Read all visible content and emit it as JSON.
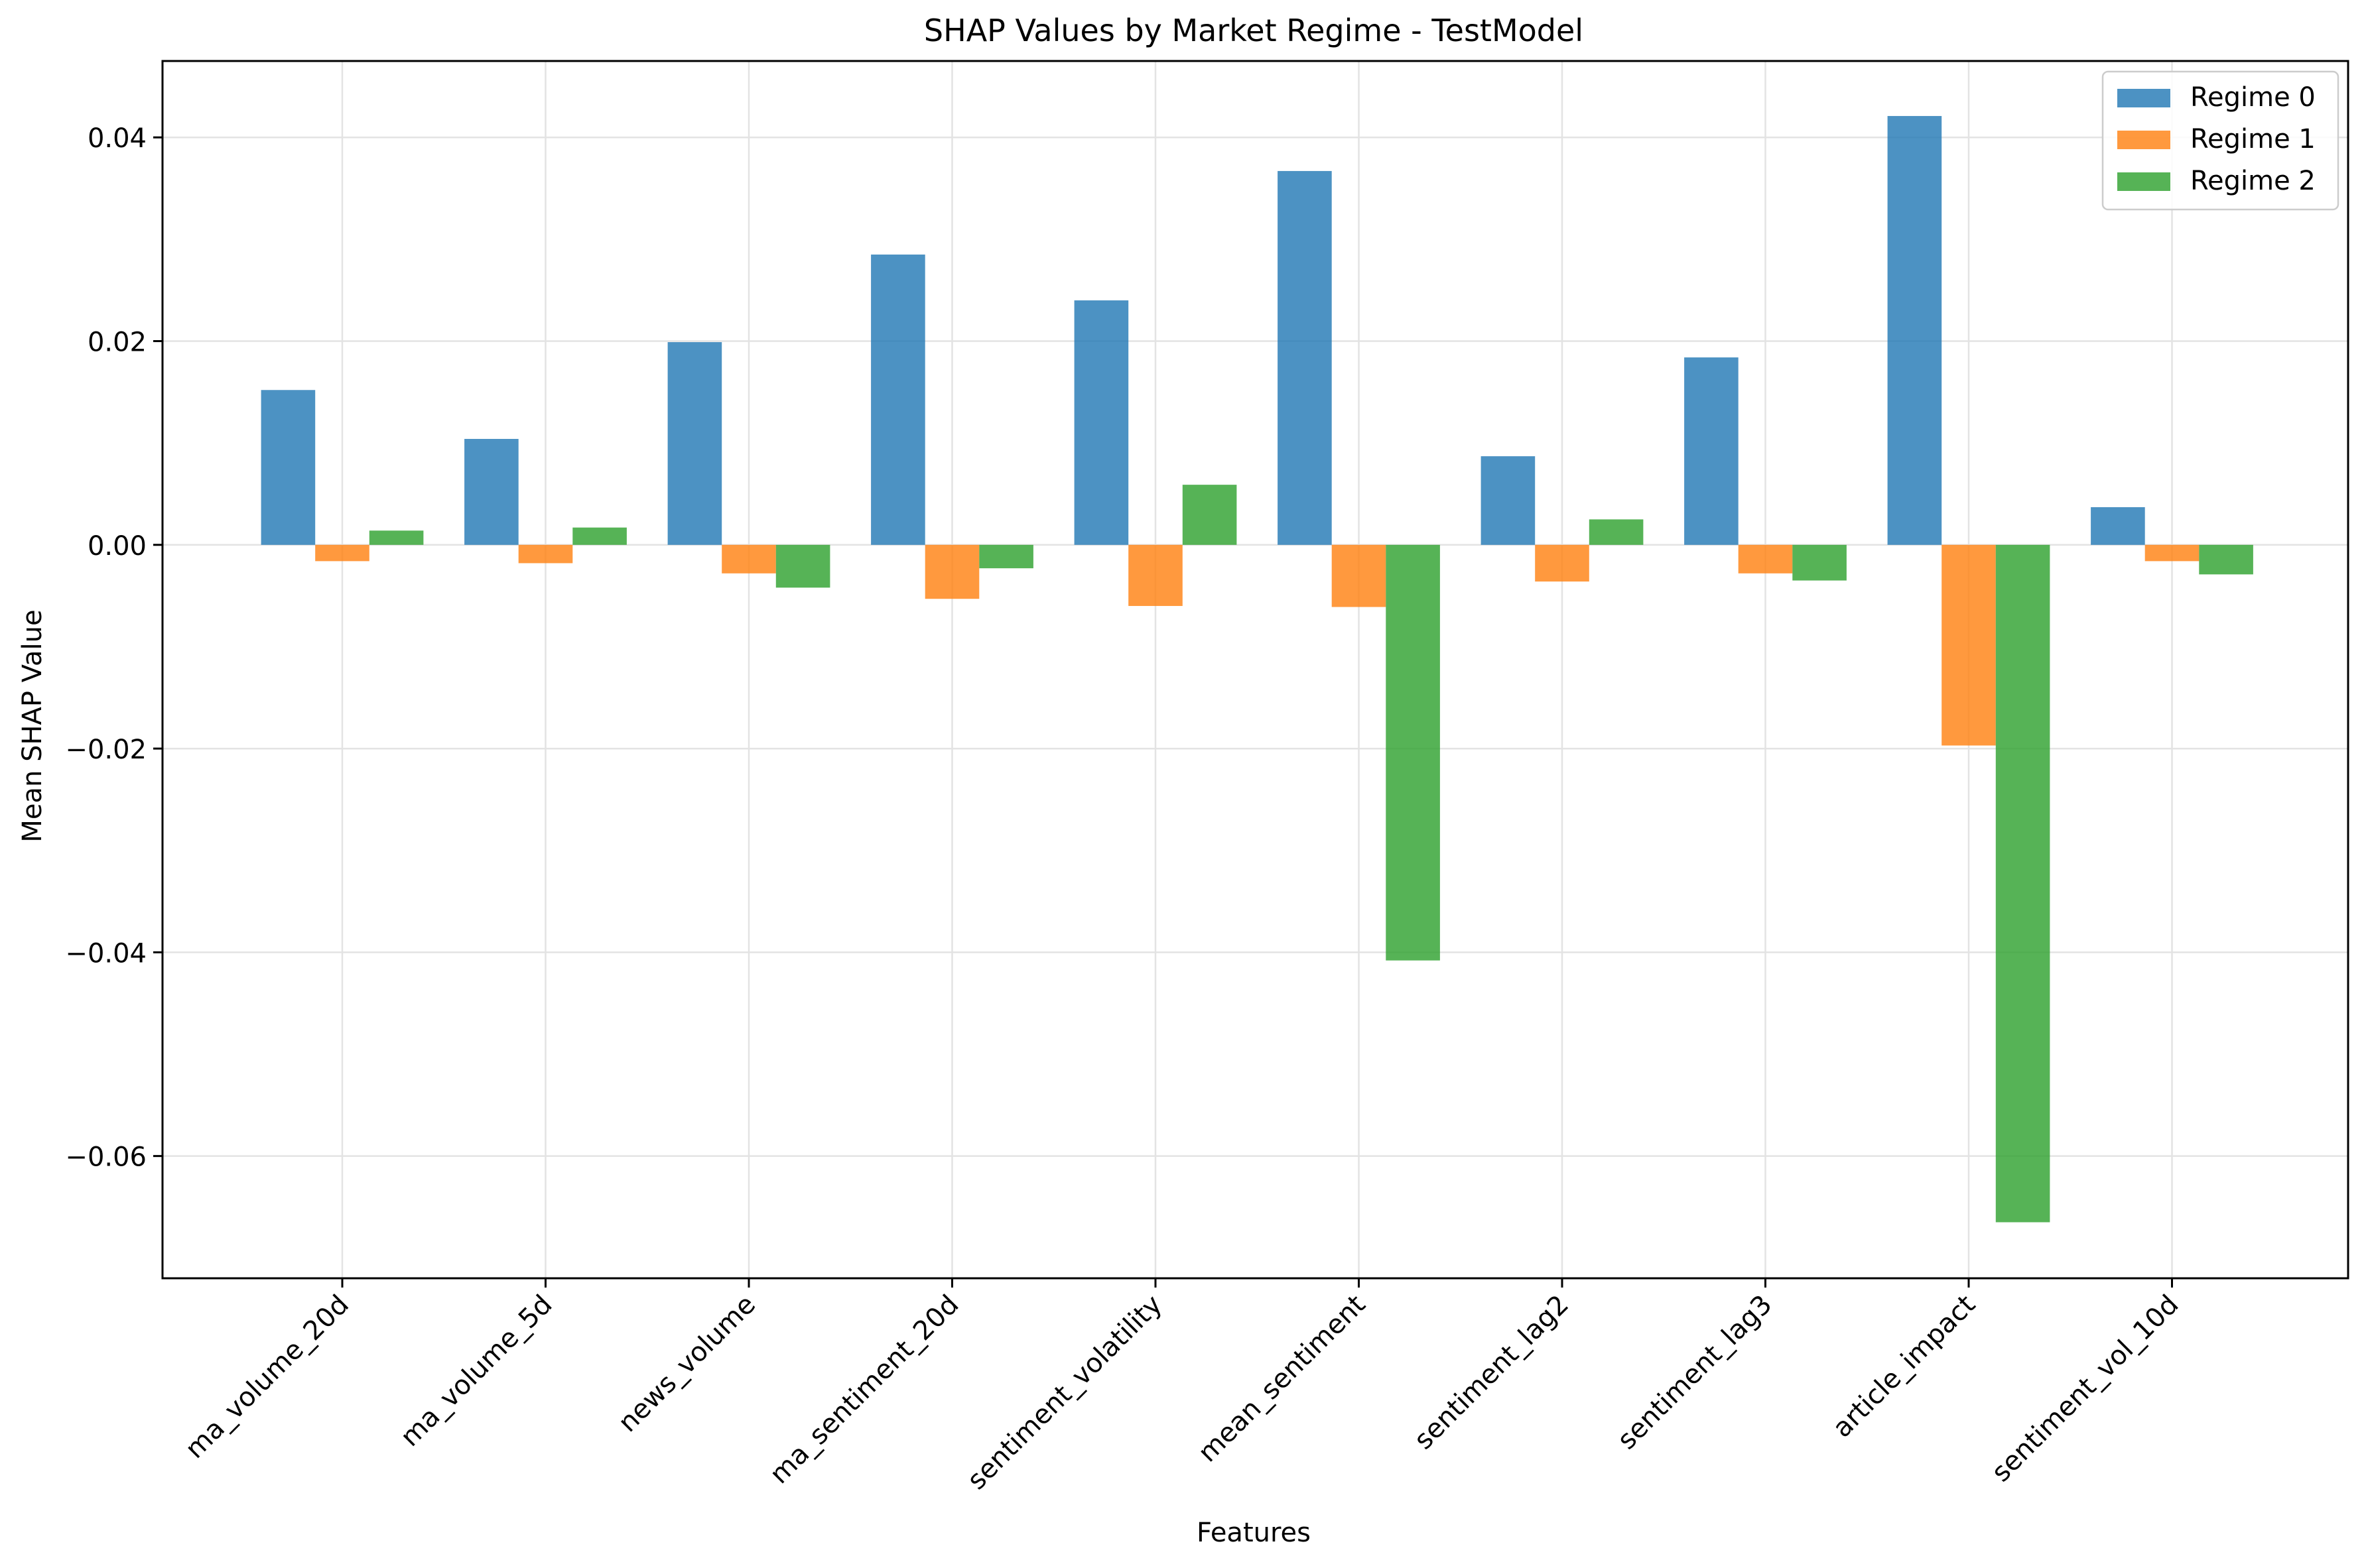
{
  "chart_data": {
    "type": "bar",
    "title": "SHAP Values by Market Regime - TestModel",
    "xlabel": "Features",
    "ylabel": "Mean SHAP Value",
    "ylim": [
      -0.072,
      0.0475
    ],
    "yticks": [
      0.04,
      0.02,
      0.0,
      -0.02,
      -0.04,
      -0.06
    ],
    "ytick_labels": [
      "0.04",
      "0.02",
      "0.00",
      "−0.02",
      "−0.04",
      "−0.06"
    ],
    "grid": true,
    "legend_position": "top-right",
    "categories": [
      "ma_volume_20d",
      "ma_volume_5d",
      "news_volume",
      "ma_sentiment_20d",
      "sentiment_volatility",
      "mean_sentiment",
      "sentiment_lag2",
      "sentiment_lag3",
      "article_impact",
      "sentiment_vol_10d"
    ],
    "series": [
      {
        "name": "Regime 0",
        "color": "#1f77b4",
        "values": [
          0.0152,
          0.0104,
          0.0199,
          0.0285,
          0.024,
          0.0367,
          0.0087,
          0.0184,
          0.0421,
          0.0037
        ]
      },
      {
        "name": "Regime 1",
        "color": "#ff7f0e",
        "values": [
          -0.0016,
          -0.0018,
          -0.0028,
          -0.0053,
          -0.006,
          -0.0061,
          -0.0036,
          -0.0028,
          -0.0197,
          -0.0016
        ]
      },
      {
        "name": "Regime 2",
        "color": "#2ca02c",
        "values": [
          0.0014,
          0.0017,
          -0.0042,
          -0.0023,
          0.0059,
          -0.0408,
          0.0025,
          -0.0035,
          -0.0665,
          -0.0029
        ]
      }
    ]
  }
}
